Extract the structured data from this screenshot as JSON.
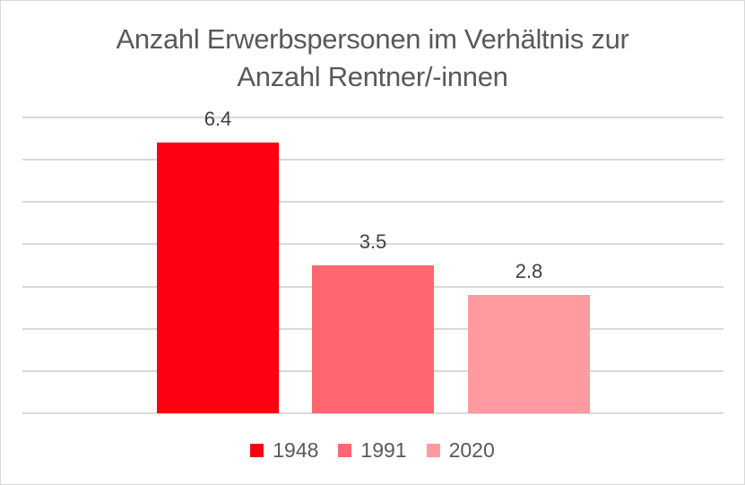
{
  "chart_data": {
    "type": "bar",
    "title": "Anzahl Erwerbspersonen im Verhältnis zur Anzahl Rentner/-innen",
    "title_lines": [
      "Anzahl Erwerbspersonen im Verhältnis zur",
      "Anzahl Rentner/-innen"
    ],
    "categories": [
      "1948",
      "1991",
      "2020"
    ],
    "values": [
      6.4,
      3.5,
      2.8
    ],
    "data_labels": [
      "6.4",
      "3.5",
      "2.8"
    ],
    "colors": [
      "#FF0010",
      "#FF6670",
      "#FF9AA0"
    ],
    "xlabel": "",
    "ylabel": "",
    "ylim": [
      0,
      7
    ],
    "grid": true,
    "y_axis_visible": false,
    "legend_position": "bottom",
    "legend": [
      "1948",
      "1991",
      "2020"
    ]
  }
}
